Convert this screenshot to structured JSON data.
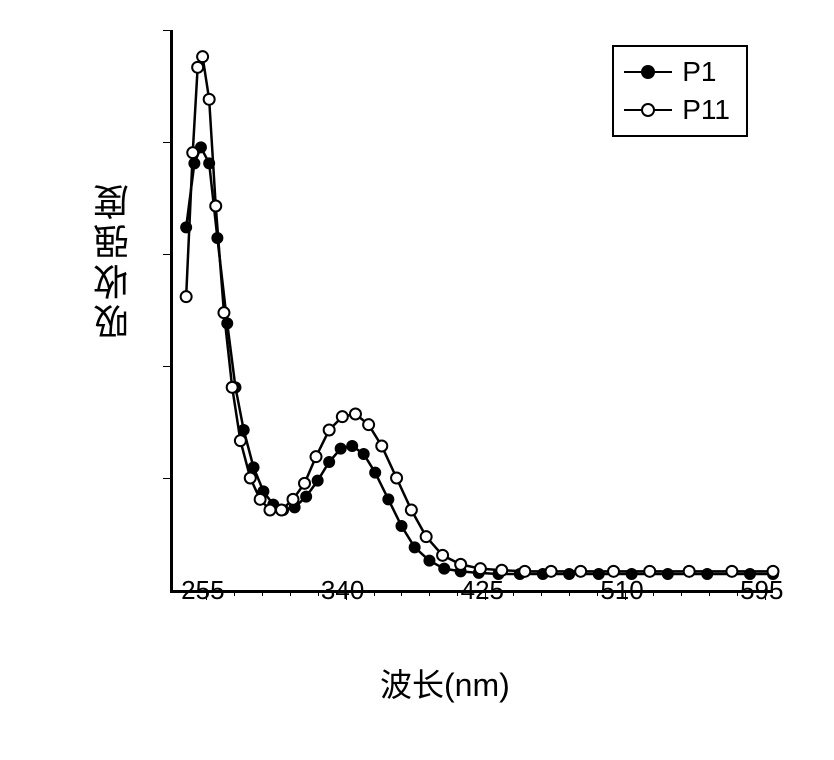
{
  "chart": {
    "type": "line",
    "xlabel": "波长(nm)",
    "ylabel": "吸收强度",
    "xlabel_fontsize": 32,
    "ylabel_fontsize": 36,
    "tick_fontsize": 26,
    "xlim": [
      235,
      600
    ],
    "ylim": [
      0,
      1.05
    ],
    "xticks": [
      255,
      340,
      425,
      510,
      595
    ],
    "xtick_minor_step": 17,
    "background_color": "#ffffff",
    "axis_color": "#000000",
    "line_width": 2.5,
    "marker_size": 11,
    "legend": {
      "position": "top-right",
      "border_color": "#000000",
      "items": [
        {
          "label": "P1",
          "marker": "filled-circle",
          "color": "#000000"
        },
        {
          "label": "P11",
          "marker": "open-circle",
          "color": "#000000"
        }
      ]
    },
    "series": [
      {
        "name": "P1",
        "marker": "filled-circle",
        "color": "#000000",
        "fill": "#000000",
        "x": [
          243,
          248,
          252,
          257,
          262,
          268,
          273,
          278,
          284,
          290,
          296,
          302,
          309,
          316,
          323,
          330,
          337,
          344,
          351,
          358,
          366,
          374,
          382,
          391,
          400,
          410,
          421,
          433,
          446,
          460,
          476,
          494,
          514,
          536,
          560,
          586,
          600
        ],
        "y": [
          0.68,
          0.8,
          0.83,
          0.8,
          0.66,
          0.5,
          0.38,
          0.3,
          0.23,
          0.185,
          0.16,
          0.15,
          0.155,
          0.175,
          0.205,
          0.24,
          0.265,
          0.27,
          0.255,
          0.22,
          0.17,
          0.12,
          0.08,
          0.055,
          0.04,
          0.035,
          0.032,
          0.03,
          0.03,
          0.03,
          0.03,
          0.03,
          0.03,
          0.03,
          0.03,
          0.03,
          0.03
        ]
      },
      {
        "name": "P11",
        "marker": "open-circle",
        "color": "#000000",
        "fill": "#ffffff",
        "x": [
          243,
          247,
          250,
          253,
          257,
          261,
          266,
          271,
          276,
          282,
          288,
          294,
          301,
          308,
          315,
          322,
          330,
          338,
          346,
          354,
          362,
          371,
          380,
          389,
          399,
          410,
          422,
          435,
          449,
          465,
          483,
          503,
          525,
          549,
          575,
          600
        ],
        "y": [
          0.55,
          0.82,
          0.98,
          1.0,
          0.92,
          0.72,
          0.52,
          0.38,
          0.28,
          0.21,
          0.17,
          0.15,
          0.15,
          0.17,
          0.2,
          0.25,
          0.3,
          0.325,
          0.33,
          0.31,
          0.27,
          0.21,
          0.15,
          0.1,
          0.065,
          0.048,
          0.04,
          0.037,
          0.035,
          0.035,
          0.035,
          0.035,
          0.035,
          0.035,
          0.035,
          0.035
        ]
      }
    ]
  }
}
